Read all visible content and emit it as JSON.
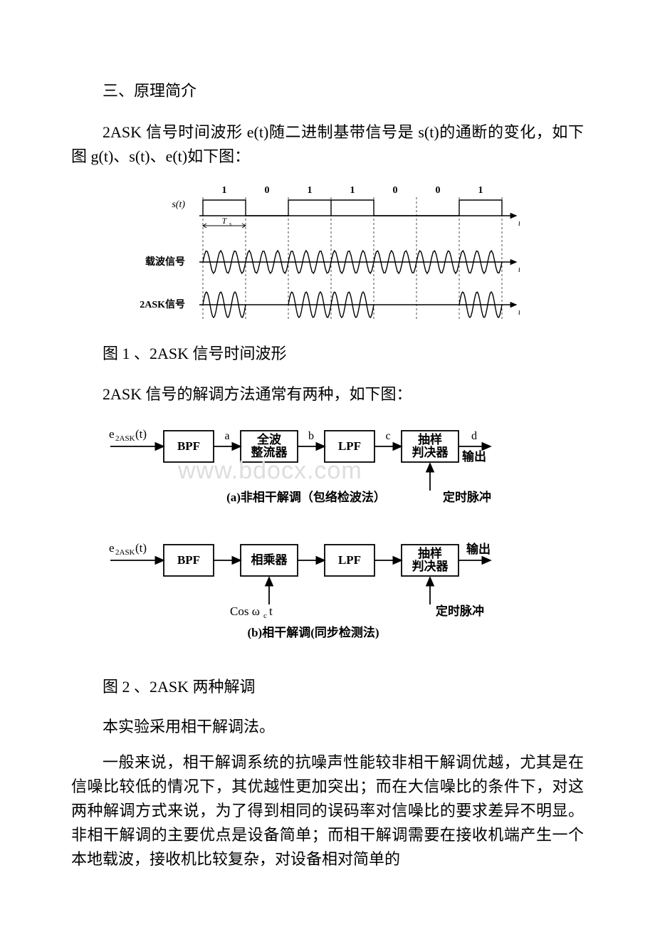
{
  "page": {
    "bg": "#ffffff",
    "text_color": "#000000",
    "font_size_pt": 16
  },
  "section_heading": "三、原理简介",
  "intro_para": "2ASK 信号时间波形 e(t)随二进制基带信号是 s(t)的通断的变化，如下图 g(t)、s(t)、e(t)如下图：",
  "fig1": {
    "type": "waveform",
    "row_labels": [
      "s(t)",
      "载波信号",
      "2ASK信号"
    ],
    "bits": [
      "1",
      "0",
      "1",
      "1",
      "0",
      "0",
      "1"
    ],
    "bit_period_label": "T_s",
    "x_axis_label": "t",
    "carrier_cycles_per_bit": 3,
    "stroke": "#000000",
    "bg": "#ffffff",
    "line_width": 1.4,
    "font_size": 14,
    "caption": " 图 1 、2ASK 信号时间波形"
  },
  "demod_intro": "2ASK 信号的解调方法通常有两种，如下图：",
  "fig2": {
    "type": "block-diagram",
    "diagram_a": {
      "input_label": "e_2ASK(t)",
      "blocks": [
        "BPF",
        "全波\n整流器",
        "LPF",
        "抽样\n判决器"
      ],
      "wire_labels": [
        "a",
        "b",
        "c",
        "d"
      ],
      "output_label": "输出",
      "bottom_input_label": "定时脉冲",
      "subtitle": "(a)非相干解调（包络检波法）"
    },
    "diagram_b": {
      "input_label": "e_2ASK(t)",
      "blocks": [
        "BPF",
        "相乘器",
        "LPF",
        "抽样\n判决器"
      ],
      "output_label": "输出",
      "bottom_left_label": "Cos ω_c t",
      "bottom_right_label": "定时脉冲",
      "subtitle": "(b)相干解调(同步检测法)"
    },
    "stroke": "#000000",
    "bg": "#ffffff",
    "line_width": 1.8,
    "font_size": 17,
    "watermark": "www.bdocx.com",
    "caption": " 图 2 、2ASK 两种解调"
  },
  "post_fig2_line": "本实验采用相干解调法。",
  "final_para": "一般来说，相干解调系统的抗噪声性能较非相干解调优越，尤其是在信噪比较低的情况下，其优越性更加突出；而在大信噪比的条件下，对这两种解调方式来说，为了得到相同的误码率对信噪比的要求差异不明显。非相干解调的主要优点是设备简单；而相干解调需要在接收机端产生一个本地载波，接收机比较复杂，对设备相对简单的"
}
